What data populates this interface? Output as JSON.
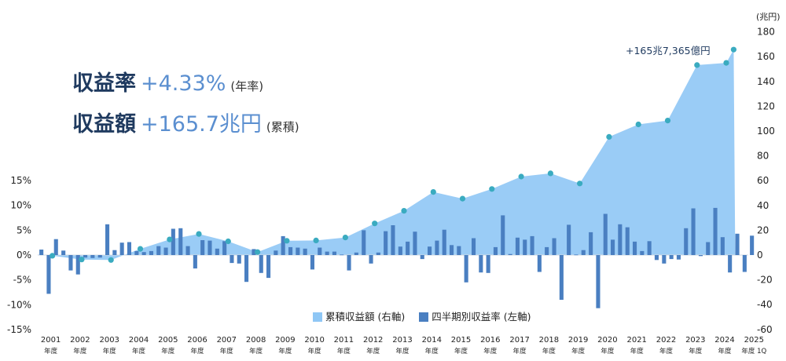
{
  "headline": {
    "yield_label": "収益率",
    "yield_value": "+4.33%",
    "yield_note": "(年率)",
    "amount_label": "収益額",
    "amount_value": "+165.7兆円",
    "amount_note": "(累積)"
  },
  "annotation": "+165兆7,365億円",
  "chart_data": {
    "type": "bar+area",
    "left_axis": {
      "label": "",
      "ticks": [
        "15%",
        "10%",
        "5%",
        "0%",
        "-5%",
        "-10%",
        "-15%"
      ],
      "ylim": [
        -15,
        15
      ]
    },
    "right_axis": {
      "label": "(兆円)",
      "ticks": [
        "180",
        "160",
        "140",
        "120",
        "100",
        "80",
        "60",
        "40",
        "20",
        "0",
        "-20",
        "-40",
        "-60"
      ],
      "ylim": [
        -60,
        180
      ]
    },
    "x_labels": [
      {
        "year": "2001",
        "sub": "年度"
      },
      {
        "year": "2002",
        "sub": "年度"
      },
      {
        "year": "2003",
        "sub": "年度"
      },
      {
        "year": "2004",
        "sub": "年度"
      },
      {
        "year": "2005",
        "sub": "年度"
      },
      {
        "year": "2006",
        "sub": "年度"
      },
      {
        "year": "2007",
        "sub": "年度"
      },
      {
        "year": "2008",
        "sub": "年度"
      },
      {
        "year": "2009",
        "sub": "年度"
      },
      {
        "year": "2010",
        "sub": "年度"
      },
      {
        "year": "2011",
        "sub": "年度"
      },
      {
        "year": "2012",
        "sub": "年度"
      },
      {
        "year": "2013",
        "sub": "年度"
      },
      {
        "year": "2014",
        "sub": "年度"
      },
      {
        "year": "2015",
        "sub": "年度"
      },
      {
        "year": "2016",
        "sub": "年度"
      },
      {
        "year": "2017",
        "sub": "年度"
      },
      {
        "year": "2018",
        "sub": "年度"
      },
      {
        "year": "2019",
        "sub": "年度"
      },
      {
        "year": "2020",
        "sub": "年度"
      },
      {
        "year": "2021",
        "sub": "年度"
      },
      {
        "year": "2022",
        "sub": "年度"
      },
      {
        "year": "2023",
        "sub": "年度"
      },
      {
        "year": "2024",
        "sub": "年度"
      },
      {
        "year": "2025",
        "sub": "年度 1Q"
      }
    ],
    "legend": [
      {
        "label": "累積収益額 (右軸)",
        "color": "#8fc7f5"
      },
      {
        "label": "四半期別収益率 (左軸)",
        "color": "#4a7fc1"
      }
    ],
    "bar_color": "#4a7fc1",
    "area_color": "#8fc7f5",
    "point_color": "#3aabc0",
    "quarterly_return_pct": [
      1.1,
      -7.8,
      3.2,
      0.9,
      -3.1,
      -3.9,
      -0.5,
      -0.6,
      -0.5,
      6.2,
      1.0,
      2.5,
      2.6,
      0.8,
      0.6,
      0.8,
      1.8,
      1.5,
      5.3,
      5.4,
      1.8,
      -2.7,
      3.0,
      2.9,
      1.3,
      2.8,
      -1.6,
      -1.7,
      -5.4,
      1.2,
      -3.6,
      -4.6,
      0.9,
      3.8,
      1.6,
      1.5,
      1.3,
      -2.9,
      1.5,
      0.7,
      0.7,
      0.1,
      -3.1,
      0.5,
      5.0,
      -1.7,
      0.5,
      4.8,
      6.0,
      1.7,
      2.7,
      4.7,
      -0.8,
      1.7,
      2.9,
      5.1,
      2.0,
      1.8,
      -5.5,
      3.4,
      -3.5,
      -3.6,
      1.6,
      8.0,
      0.2,
      3.5,
      3.1,
      3.8,
      -3.4,
      1.6,
      3.4,
      -9.0,
      6.1,
      0.1,
      1.0,
      4.6,
      -10.7,
      8.3,
      3.1,
      6.2,
      5.6,
      2.7,
      0.8,
      2.8,
      -1.0,
      -1.7,
      -0.8,
      -0.9,
      5.4,
      9.4,
      -0.2,
      2.6,
      9.5,
      3.6,
      -3.5,
      4.3,
      -3.4,
      3.9
    ],
    "cumulative_trillion_yen": [
      {
        "x": 2001.5,
        "y": -0.6
      },
      {
        "x": 2002.5,
        "y": -3.6
      },
      {
        "x": 2003.5,
        "y": -4.0
      },
      {
        "x": 2004.5,
        "y": 5.0
      },
      {
        "x": 2005.5,
        "y": 12.6
      },
      {
        "x": 2006.5,
        "y": 17.0
      },
      {
        "x": 2007.5,
        "y": 11.1
      },
      {
        "x": 2008.5,
        "y": 2.4
      },
      {
        "x": 2009.5,
        "y": 11.5
      },
      {
        "x": 2010.5,
        "y": 11.8
      },
      {
        "x": 2011.5,
        "y": 14.2
      },
      {
        "x": 2012.5,
        "y": 25.5
      },
      {
        "x": 2013.5,
        "y": 35.7
      },
      {
        "x": 2014.5,
        "y": 50.9
      },
      {
        "x": 2015.5,
        "y": 45.5
      },
      {
        "x": 2016.5,
        "y": 53.3
      },
      {
        "x": 2017.5,
        "y": 63.3
      },
      {
        "x": 2018.5,
        "y": 65.9
      },
      {
        "x": 2019.5,
        "y": 57.7
      },
      {
        "x": 2020.5,
        "y": 95.3
      },
      {
        "x": 2021.5,
        "y": 105.4
      },
      {
        "x": 2022.5,
        "y": 108.5
      },
      {
        "x": 2023.5,
        "y": 153.2
      },
      {
        "x": 2024.5,
        "y": 155.0
      },
      {
        "x": 2024.75,
        "y": 165.7
      }
    ]
  }
}
